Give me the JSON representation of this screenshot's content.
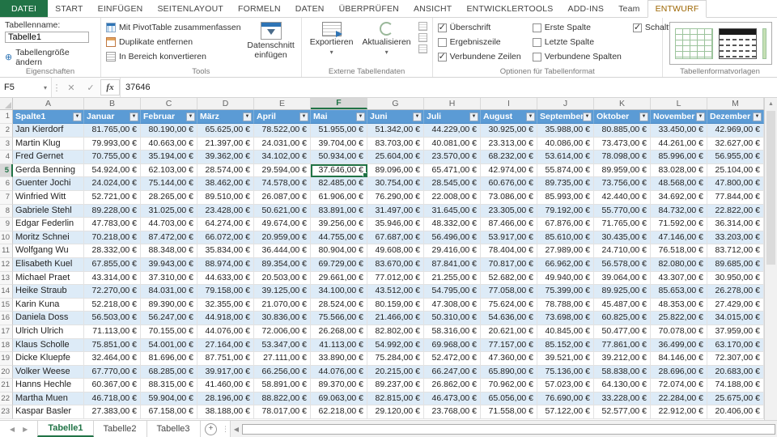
{
  "ribbon": {
    "tabs": [
      {
        "label": "DATEI",
        "type": "file"
      },
      {
        "label": "START"
      },
      {
        "label": "EINFÜGEN"
      },
      {
        "label": "SEITENLAYOUT"
      },
      {
        "label": "FORMELN"
      },
      {
        "label": "DATEN"
      },
      {
        "label": "ÜBERPRÜFEN"
      },
      {
        "label": "ANSICHT"
      },
      {
        "label": "ENTWICKLERTOOLS"
      },
      {
        "label": "ADD-INS"
      },
      {
        "label": "Team"
      },
      {
        "label": "ENTWURF",
        "active": true
      }
    ],
    "eigenschaften": {
      "group_label": "Eigenschaften",
      "tabellenname_label": "Tabellenname:",
      "table_name_value": "Tabelle1",
      "resize_button": "Tabellengröße ändern"
    },
    "tools": {
      "group_label": "Tools",
      "items": [
        "Mit PivotTable zusammenfassen",
        "Duplikate entfernen",
        "In Bereich konvertieren"
      ],
      "slicer_button": "Datenschnitt einfügen"
    },
    "externe": {
      "group_label": "Externe Tabellendaten",
      "export_button": "Exportieren",
      "refresh_button": "Aktualisieren"
    },
    "optionen": {
      "group_label": "Optionen für Tabellenformat",
      "checkboxes": [
        {
          "label": "Überschrift",
          "checked": true
        },
        {
          "label": "Ergebniszeile",
          "checked": false
        },
        {
          "label": "Verbundene Zeilen",
          "checked": true
        },
        {
          "label": "Erste Spalte",
          "checked": false
        },
        {
          "label": "Letzte Spalte",
          "checked": false
        },
        {
          "label": "Verbundene Spalten",
          "checked": false
        },
        {
          "label": "Schaltfläche \"Filter\"",
          "checked": true
        }
      ]
    },
    "formatvorlagen": {
      "group_label": "Tabellenformatvorlagen"
    }
  },
  "formula_bar": {
    "name_box": "F5",
    "formula": "37646"
  },
  "grid": {
    "column_letters": [
      "A",
      "B",
      "C",
      "D",
      "E",
      "F",
      "G",
      "H",
      "I",
      "J",
      "K",
      "L",
      "M"
    ],
    "selected_column": "F",
    "selected_row": 5,
    "headers": [
      "Spalte1",
      "Januar",
      "Februar",
      "März",
      "April",
      "Mai",
      "Juni",
      "Juli",
      "August",
      "September",
      "Oktober",
      "November",
      "Dezember"
    ],
    "currency_suffix": ",00 €",
    "rows": [
      {
        "name": "Jan Kierdorf",
        "values": [
          81765,
          80190,
          65625,
          78522,
          51955,
          51342,
          44229,
          30925,
          35988,
          80885,
          33450,
          42969
        ]
      },
      {
        "name": "Martin Klug",
        "values": [
          79993,
          40663,
          21397,
          24031,
          39704,
          83703,
          40081,
          23313,
          40086,
          73473,
          44261,
          32627
        ]
      },
      {
        "name": "Fred Gernet",
        "values": [
          70755,
          35194,
          39362,
          34102,
          50934,
          25604,
          23570,
          68232,
          53614,
          78098,
          85996,
          56955
        ]
      },
      {
        "name": "Gerda Benning",
        "values": [
          54924,
          62103,
          28574,
          29594,
          37646,
          89096,
          65471,
          42974,
          55874,
          89959,
          83028,
          25104
        ]
      },
      {
        "name": "Guenter Jochi",
        "values": [
          24024,
          75144,
          38462,
          74578,
          82485,
          30754,
          28545,
          60676,
          89735,
          73756,
          48568,
          47800
        ]
      },
      {
        "name": "Winfried Witt",
        "values": [
          52721,
          28265,
          89510,
          26087,
          61906,
          76290,
          22008,
          73086,
          85993,
          42440,
          34692,
          77844
        ]
      },
      {
        "name": "Gabriele Stehl",
        "values": [
          89228,
          31025,
          23428,
          50621,
          83891,
          31497,
          31645,
          23305,
          79192,
          55770,
          84732,
          22822
        ]
      },
      {
        "name": "Edgar Federlin",
        "values": [
          47783,
          44703,
          64274,
          49674,
          39256,
          35946,
          48332,
          87466,
          67876,
          71765,
          71592,
          36314
        ]
      },
      {
        "name": "Moritz Schnei",
        "values": [
          70218,
          87472,
          66072,
          20959,
          44755,
          67687,
          56496,
          53917,
          85610,
          30435,
          47146,
          33203
        ]
      },
      {
        "name": "Wolfgang Wu",
        "values": [
          28332,
          88348,
          35834,
          36444,
          80904,
          49608,
          29416,
          78404,
          27989,
          24710,
          76518,
          83712
        ]
      },
      {
        "name": "Elisabeth Kuel",
        "values": [
          67855,
          39943,
          88974,
          89354,
          69729,
          83670,
          87841,
          70817,
          66962,
          56578,
          82080,
          89685
        ]
      },
      {
        "name": "Michael Praet",
        "values": [
          43314,
          37310,
          44633,
          20503,
          29661,
          77012,
          21255,
          52682,
          49940,
          39064,
          43307,
          30950
        ]
      },
      {
        "name": "Heike Straub",
        "values": [
          72270,
          84031,
          79158,
          39125,
          34100,
          43512,
          54795,
          77058,
          75399,
          89925,
          85653,
          26278
        ]
      },
      {
        "name": "Karin Kuna",
        "values": [
          52218,
          89390,
          32355,
          21070,
          28524,
          80159,
          47308,
          75624,
          78788,
          45487,
          48353,
          27429
        ]
      },
      {
        "name": "Daniela Doss",
        "values": [
          56503,
          56247,
          44918,
          30836,
          75566,
          21466,
          50310,
          54636,
          73698,
          60825,
          25822,
          34015
        ]
      },
      {
        "name": "Ulrich Ulrich",
        "values": [
          71113,
          70155,
          44076,
          72006,
          26268,
          82802,
          58316,
          20621,
          40845,
          50477,
          70078,
          37959
        ]
      },
      {
        "name": "Klaus Scholle",
        "values": [
          75851,
          54001,
          27164,
          53347,
          41113,
          54992,
          69968,
          77157,
          85152,
          77861,
          36499,
          63170
        ]
      },
      {
        "name": "Dicke Kluepfe",
        "values": [
          32464,
          81696,
          87751,
          27111,
          33890,
          75284,
          52472,
          47360,
          39521,
          39212,
          84146,
          72307
        ]
      },
      {
        "name": "Volker Weese",
        "values": [
          67770,
          68285,
          39917,
          66256,
          44076,
          20215,
          66247,
          65890,
          75136,
          58838,
          28696,
          20683
        ]
      },
      {
        "name": "Hanns Hechle",
        "values": [
          60367,
          88315,
          41460,
          58891,
          89370,
          89237,
          26862,
          70962,
          57023,
          64130,
          72074,
          74188
        ]
      },
      {
        "name": "Martha Muen",
        "values": [
          46718,
          59904,
          28196,
          88822,
          69063,
          82815,
          46473,
          65056,
          76690,
          33228,
          22284,
          25675
        ]
      },
      {
        "name": "Kaspar Basler",
        "values": [
          27383,
          67158,
          38188,
          78017,
          62218,
          29120,
          23768,
          71558,
          57122,
          52577,
          22912,
          20406
        ]
      }
    ]
  },
  "sheet_bar": {
    "tabs": [
      "Tabelle1",
      "Tabelle2",
      "Tabelle3"
    ],
    "active_tab": "Tabelle1"
  },
  "colors": {
    "excel_green": "#217346",
    "contextual_tab_text": "#9C6500",
    "header_blue": "#5B9BD5",
    "band_blue": "#DDEBF7"
  }
}
